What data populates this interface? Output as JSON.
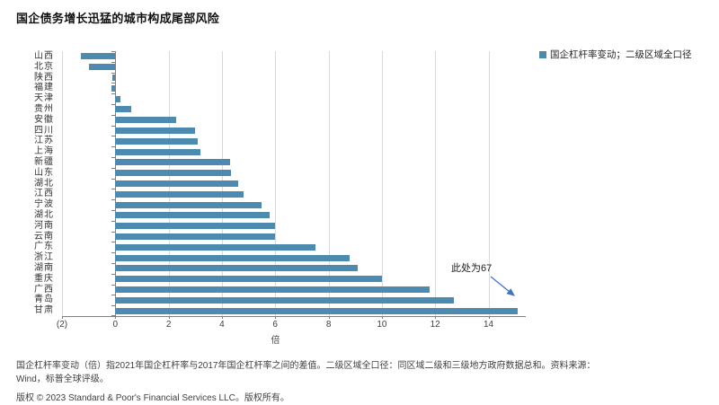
{
  "title": "国企债务增长迅猛的城市构成尾部风险",
  "legend": {
    "marker_color": "#4d8ab0",
    "label": "国企杠杆率变动；二级区域全口径"
  },
  "chart_data": {
    "type": "bar",
    "orientation": "horizontal",
    "title": "国企债务增长迅猛的城市构成尾部风险",
    "categories": [
      "山西",
      "北京",
      "陕西",
      "福建",
      "天津",
      "贵州",
      "安徽",
      "四川",
      "江苏",
      "上海",
      "新疆",
      "山东",
      "湖北",
      "江西",
      "宁波",
      "湖北",
      "河南",
      "云南",
      "广东",
      "浙江",
      "湖南",
      "重庆",
      "广西",
      "青岛",
      "甘肃"
    ],
    "values": [
      -1.3,
      -1.0,
      -0.1,
      -0.15,
      0.2,
      0.6,
      2.3,
      3.0,
      3.1,
      3.2,
      4.3,
      4.35,
      4.6,
      4.8,
      5.5,
      5.8,
      6.0,
      6.0,
      7.5,
      8.8,
      9.1,
      10.0,
      11.8,
      12.7,
      15.1
    ],
    "xlabel": "倍",
    "xlim": [
      -2,
      15.4
    ],
    "xticks": [
      -2,
      0,
      2,
      4,
      6,
      8,
      10,
      12,
      14
    ],
    "xtick_labels": [
      "(2)",
      "0",
      "2",
      "4",
      "6",
      "8",
      "10",
      "12",
      "14"
    ],
    "bar_color": "#4d8ab0",
    "grid": "vertical",
    "legend_entries": [
      "国企杠杆率变动；二级区域全口径"
    ],
    "legend_position": "top-right",
    "annotation": {
      "text": "此处为67",
      "target_category": "甘肃",
      "actual_value": 67,
      "arrow_color": "#4472c4"
    }
  },
  "annotation": {
    "text": "此处为67"
  },
  "footnote": {
    "line1": "国企杠杆率变动（倍）指2021年国企杠杆率与2017年国企杠杆率之间的差值。二级区域全口径：同区域二级和三级地方政府数据总和。资料来源：",
    "line2": "Wind，标普全球评级。"
  },
  "copyright": "版权 © 2023 Standard & Poor's Financial Services LLC。版权所有。"
}
